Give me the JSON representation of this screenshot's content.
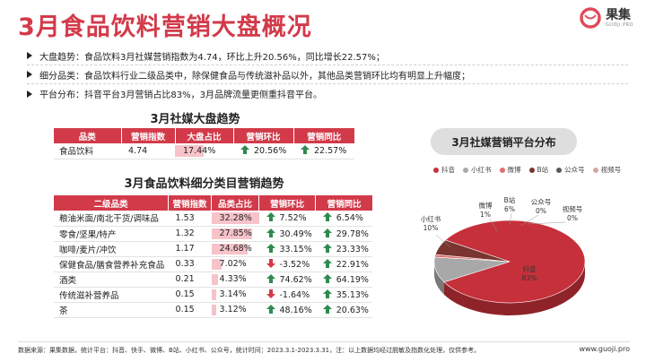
{
  "title": "3月食品饮料营销大盘概况",
  "logo": {
    "cn": "果集",
    "en": "GUOJI.PRO"
  },
  "bullets": [
    "大盘趋势：食品饮料3月社媒营销指数为4.74，环比上升20.56%，同比增长22.57%；",
    "细分品类：食品饮料行业二级品类中，除保健食品与传统滋补品以外，其他品类营销环比均有明显上升幅度；",
    "平台分布：抖音平台3月营销占比83%，3月品牌流量更侧重抖音平台。"
  ],
  "table1": {
    "title": "3月社媒大盘趋势",
    "headers": [
      "品类",
      "营销指数",
      "大盘占比",
      "营销环比",
      "营销同比"
    ],
    "row": {
      "category": "食品饮料",
      "index": "4.74",
      "share": "17.44%",
      "share_value": 17.44,
      "mom": "20.56%",
      "yoy": "22.57%"
    }
  },
  "table2": {
    "title": "3月食品饮料细分类目营销趋势",
    "headers": [
      "二级品类",
      "营销指数",
      "品类占比",
      "营销环比",
      "营销同比"
    ],
    "rows": [
      {
        "category": "粮油米面/南北干货/调味品",
        "index": "1.53",
        "share": "32.28%",
        "share_value": 32.28,
        "mom": "7.52%",
        "mom_dir": "up",
        "yoy": "6.54%",
        "yoy_dir": "up"
      },
      {
        "category": "零食/坚果/特产",
        "index": "1.32",
        "share": "27.85%",
        "share_value": 27.85,
        "mom": "30.49%",
        "mom_dir": "up",
        "yoy": "29.78%",
        "yoy_dir": "up"
      },
      {
        "category": "咖啡/麦片/冲饮",
        "index": "1.17",
        "share": "24.68%",
        "share_value": 24.68,
        "mom": "33.15%",
        "mom_dir": "up",
        "yoy": "23.33%",
        "yoy_dir": "up"
      },
      {
        "category": "保健食品/膳食营养补充食品",
        "index": "0.33",
        "share": "7.02%",
        "share_value": 7.02,
        "mom": "-3.52%",
        "mom_dir": "down",
        "yoy": "22.91%",
        "yoy_dir": "up"
      },
      {
        "category": "酒类",
        "index": "0.21",
        "share": "4.33%",
        "share_value": 4.33,
        "mom": "74.62%",
        "mom_dir": "up",
        "yoy": "64.19%",
        "yoy_dir": "up"
      },
      {
        "category": "传统滋补营养品",
        "index": "0.15",
        "share": "3.14%",
        "share_value": 3.14,
        "mom": "-1.64%",
        "mom_dir": "down",
        "yoy": "35.13%",
        "yoy_dir": "up"
      },
      {
        "category": "茶",
        "index": "0.15",
        "share": "3.12%",
        "share_value": 3.12,
        "mom": "48.16%",
        "mom_dir": "up",
        "yoy": "20.63%",
        "yoy_dir": "up"
      }
    ]
  },
  "colors": {
    "accent": "#d23a4a",
    "up": "#2f8a50",
    "down": "#d23a4a",
    "bar": "#f6c3c9"
  },
  "chart_data": {
    "type": "pie",
    "title": "3月社媒营销平台分布",
    "legend_position": "top",
    "slices": [
      {
        "name": "抖音",
        "label": "抖音",
        "pct_text": "83%",
        "value": 83,
        "color": "#c6303a"
      },
      {
        "name": "小红书",
        "label": "小红书",
        "pct_text": "10%",
        "value": 10,
        "color": "#a8a8a8"
      },
      {
        "name": "微博",
        "label": "微博",
        "pct_text": "1%",
        "value": 1,
        "color": "#e07070"
      },
      {
        "name": "B站",
        "label": "B站",
        "pct_text": "6%",
        "value": 6,
        "color": "#7a3530"
      },
      {
        "name": "公众号",
        "label": "公众号",
        "pct_text": "0%",
        "value": 0,
        "color": "#5a5a5a"
      },
      {
        "name": "视频号",
        "label": "视频号",
        "pct_text": "0%",
        "value": 0,
        "color": "#d9a3a3"
      }
    ]
  },
  "footer": {
    "source": "数据来源：果集数据，统计平台：抖音、快手、微博、B站、小红书、公众号，统计时间：2023.3.1-2023.3.31，注：以上数据均经过脱敏及指数化处理，仅供参考。",
    "url": "www.guoji.pro"
  }
}
